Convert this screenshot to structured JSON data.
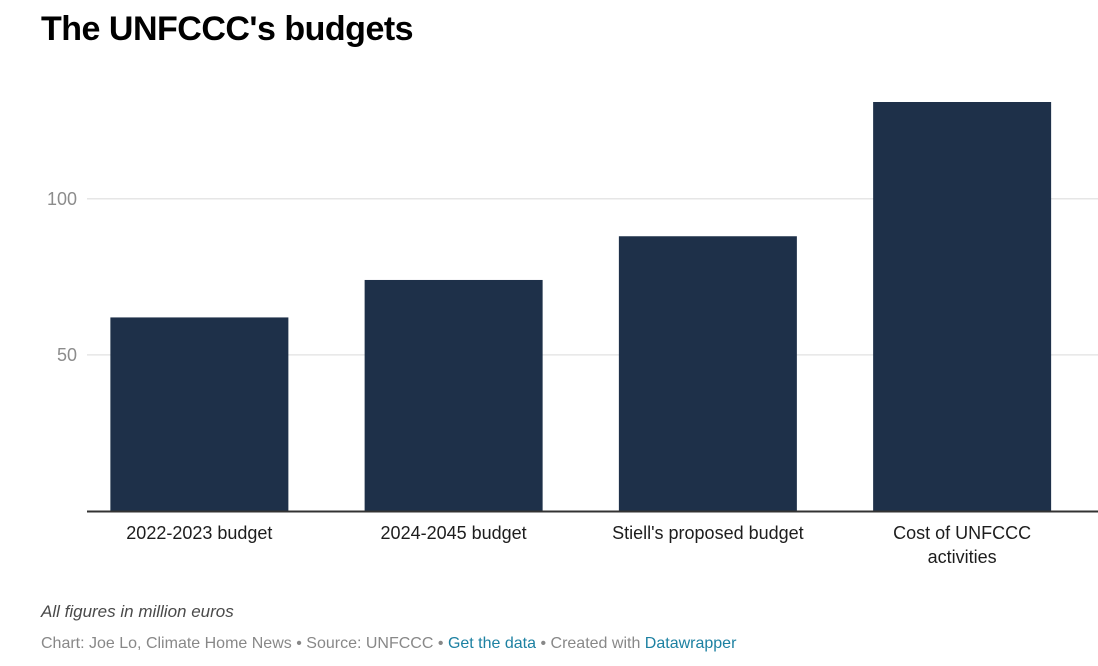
{
  "chart_data": {
    "type": "bar",
    "title": "The UNFCCC's budgets",
    "xlabel": "",
    "ylabel": "",
    "categories": [
      "2022-2023 budget",
      "2024-2045 budget",
      "Stiell's proposed budget",
      "Cost of UNFCCC activities"
    ],
    "category_lines": [
      [
        "2022-2023 budget"
      ],
      [
        "2024-2045 budget"
      ],
      [
        "Stiell's proposed budget"
      ],
      [
        "Cost of UNFCCC",
        "activities"
      ]
    ],
    "values": [
      62,
      74,
      88,
      131
    ],
    "ylim": [
      0,
      131
    ],
    "yticks": [
      50,
      100
    ],
    "grid": true,
    "legend": "none",
    "bar_color": "#1e3049",
    "notes": "All figures in million euros"
  },
  "footer": {
    "notes": "All figures in million euros",
    "byline_prefix": "Chart: Joe Lo, Climate Home News",
    "separator": "•",
    "source": "Source: UNFCCC",
    "get_data_link": "Get the data",
    "created_with": "Created with",
    "datawrapper_link": "Datawrapper",
    "link_color": "#1d81a2"
  }
}
